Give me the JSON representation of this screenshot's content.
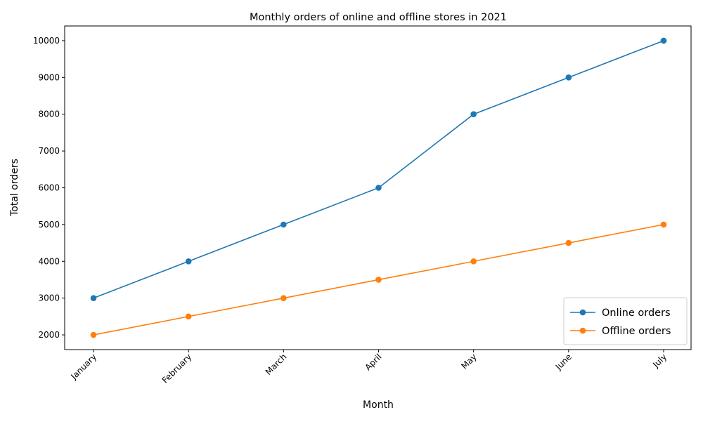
{
  "chart_data": {
    "type": "line",
    "title": "Monthly orders of online and offline stores in 2021",
    "xlabel": "Month",
    "ylabel": "Total orders",
    "categories": [
      "January",
      "February",
      "March",
      "April",
      "May",
      "June",
      "July"
    ],
    "series": [
      {
        "name": "Online orders",
        "values": [
          3000,
          4000,
          5000,
          6000,
          8000,
          9000,
          10000
        ],
        "color": "#1f77b4",
        "marker": "circle"
      },
      {
        "name": "Offline orders",
        "values": [
          2000,
          2500,
          3000,
          3500,
          4000,
          4500,
          5000
        ],
        "color": "#ff7f0e",
        "marker": "circle"
      }
    ],
    "yticks": [
      2000,
      3000,
      4000,
      5000,
      6000,
      7000,
      8000,
      9000,
      10000
    ],
    "ylim": [
      1600,
      10400
    ],
    "grid": false,
    "legend_position": "lower-right",
    "xtick_rotation": "45 degrees"
  }
}
